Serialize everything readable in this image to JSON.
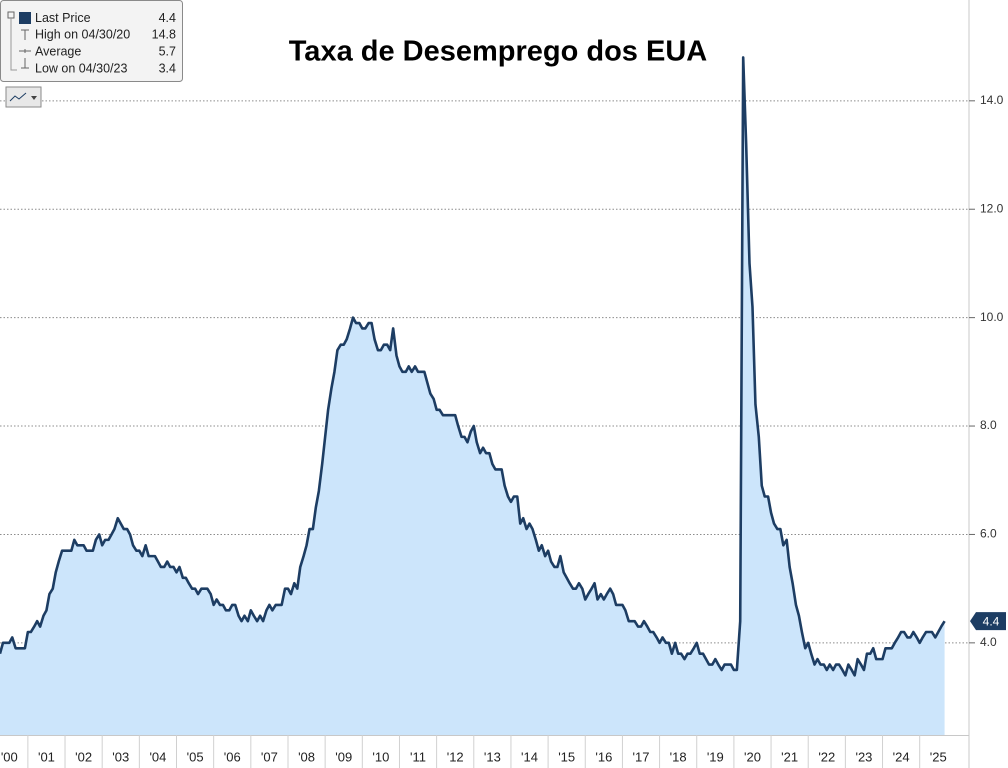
{
  "chart_data": {
    "type": "line",
    "title": "Taxa de Desemprego dos EUA",
    "xlim": [
      2000.25,
      2026.3
    ],
    "ylim": [
      2.3,
      15.86
    ],
    "grid": true,
    "yticks": [
      {
        "value": 4,
        "label": "4.0"
      },
      {
        "value": 6,
        "label": "6.0"
      },
      {
        "value": 8,
        "label": "8.0"
      },
      {
        "value": 10,
        "label": "10.0"
      },
      {
        "value": 12,
        "label": "12.0"
      },
      {
        "value": 14,
        "label": "14.0"
      }
    ],
    "xticks": [
      {
        "value": 2000,
        "label": "'00"
      },
      {
        "value": 2001,
        "label": "'01"
      },
      {
        "value": 2002,
        "label": "'02"
      },
      {
        "value": 2003,
        "label": "'03"
      },
      {
        "value": 2004,
        "label": "'04"
      },
      {
        "value": 2005,
        "label": "'05"
      },
      {
        "value": 2006,
        "label": "'06"
      },
      {
        "value": 2007,
        "label": "'07"
      },
      {
        "value": 2008,
        "label": "'08"
      },
      {
        "value": 2009,
        "label": "'09"
      },
      {
        "value": 2010,
        "label": "'10"
      },
      {
        "value": 2011,
        "label": "'11"
      },
      {
        "value": 2012,
        "label": "'12"
      },
      {
        "value": 2013,
        "label": "'13"
      },
      {
        "value": 2014,
        "label": "'14"
      },
      {
        "value": 2015,
        "label": "'15"
      },
      {
        "value": 2016,
        "label": "'16"
      },
      {
        "value": 2017,
        "label": "'17"
      },
      {
        "value": 2018,
        "label": "'18"
      },
      {
        "value": 2019,
        "label": "'19"
      },
      {
        "value": 2020,
        "label": "'20"
      },
      {
        "value": 2021,
        "label": "'21"
      },
      {
        "value": 2022,
        "label": "'22"
      },
      {
        "value": 2023,
        "label": "'23"
      },
      {
        "value": 2024,
        "label": "'24"
      },
      {
        "value": 2025,
        "label": "'25"
      }
    ],
    "legend": [
      {
        "label": "High on 04/30/20",
        "value": 14.8
      },
      {
        "label": "Average",
        "value": 5.7
      },
      {
        "label": "Low on 04/30/23",
        "value": 3.4
      }
    ],
    "x": [
      2000.25,
      2000.33,
      2000.42,
      2000.5,
      2000.58,
      2000.67,
      2000.75,
      2000.83,
      2000.92,
      2001,
      2001.08,
      2001.17,
      2001.25,
      2001.33,
      2001.42,
      2001.5,
      2001.58,
      2001.67,
      2001.75,
      2001.83,
      2001.92,
      2002,
      2002.08,
      2002.17,
      2002.25,
      2002.33,
      2002.42,
      2002.5,
      2002.58,
      2002.67,
      2002.75,
      2002.83,
      2002.92,
      2003,
      2003.08,
      2003.17,
      2003.25,
      2003.33,
      2003.42,
      2003.5,
      2003.58,
      2003.67,
      2003.75,
      2003.83,
      2003.92,
      2004,
      2004.08,
      2004.17,
      2004.25,
      2004.33,
      2004.42,
      2004.5,
      2004.58,
      2004.67,
      2004.75,
      2004.83,
      2004.92,
      2005,
      2005.08,
      2005.17,
      2005.25,
      2005.33,
      2005.42,
      2005.5,
      2005.58,
      2005.67,
      2005.75,
      2005.83,
      2005.92,
      2006,
      2006.08,
      2006.17,
      2006.25,
      2006.33,
      2006.42,
      2006.5,
      2006.58,
      2006.67,
      2006.75,
      2006.83,
      2006.92,
      2007,
      2007.08,
      2007.17,
      2007.25,
      2007.33,
      2007.42,
      2007.5,
      2007.58,
      2007.67,
      2007.75,
      2007.83,
      2007.92,
      2008,
      2008.08,
      2008.17,
      2008.25,
      2008.33,
      2008.42,
      2008.5,
      2008.58,
      2008.67,
      2008.75,
      2008.83,
      2008.92,
      2009,
      2009.08,
      2009.17,
      2009.25,
      2009.33,
      2009.42,
      2009.5,
      2009.58,
      2009.67,
      2009.75,
      2009.83,
      2009.92,
      2010,
      2010.08,
      2010.17,
      2010.25,
      2010.33,
      2010.42,
      2010.5,
      2010.58,
      2010.67,
      2010.75,
      2010.83,
      2010.92,
      2011,
      2011.08,
      2011.17,
      2011.25,
      2011.33,
      2011.42,
      2011.5,
      2011.58,
      2011.67,
      2011.75,
      2011.83,
      2011.92,
      2012,
      2012.08,
      2012.17,
      2012.25,
      2012.33,
      2012.42,
      2012.5,
      2012.58,
      2012.67,
      2012.75,
      2012.83,
      2012.92,
      2013,
      2013.08,
      2013.17,
      2013.25,
      2013.33,
      2013.42,
      2013.5,
      2013.58,
      2013.67,
      2013.75,
      2013.83,
      2013.92,
      2014,
      2014.08,
      2014.17,
      2014.25,
      2014.33,
      2014.42,
      2014.5,
      2014.58,
      2014.67,
      2014.75,
      2014.83,
      2014.92,
      2015,
      2015.08,
      2015.17,
      2015.25,
      2015.33,
      2015.42,
      2015.5,
      2015.58,
      2015.67,
      2015.75,
      2015.83,
      2015.92,
      2016,
      2016.08,
      2016.17,
      2016.25,
      2016.33,
      2016.42,
      2016.5,
      2016.58,
      2016.67,
      2016.75,
      2016.83,
      2016.92,
      2017,
      2017.08,
      2017.17,
      2017.25,
      2017.33,
      2017.42,
      2017.5,
      2017.58,
      2017.67,
      2017.75,
      2017.83,
      2017.92,
      2018,
      2018.08,
      2018.17,
      2018.25,
      2018.33,
      2018.42,
      2018.5,
      2018.58,
      2018.67,
      2018.75,
      2018.83,
      2018.92,
      2019,
      2019.08,
      2019.17,
      2019.25,
      2019.33,
      2019.42,
      2019.5,
      2019.58,
      2019.67,
      2019.75,
      2019.83,
      2019.92,
      2020,
      2020.08,
      2020.17,
      2020.25,
      2020.33,
      2020.42,
      2020.5,
      2020.58,
      2020.67,
      2020.75,
      2020.83,
      2020.92,
      2021,
      2021.08,
      2021.17,
      2021.25,
      2021.33,
      2021.42,
      2021.5,
      2021.58,
      2021.67,
      2021.75,
      2021.83,
      2021.92,
      2022,
      2022.08,
      2022.17,
      2022.25,
      2022.33,
      2022.42,
      2022.5,
      2022.58,
      2022.67,
      2022.75,
      2022.83,
      2022.92,
      2023,
      2023.08,
      2023.17,
      2023.25,
      2023.33,
      2023.42,
      2023.5,
      2023.58,
      2023.67,
      2023.75,
      2023.83,
      2023.92,
      2024,
      2024.08,
      2024.17,
      2024.25,
      2024.33,
      2024.42,
      2024.5,
      2024.58,
      2024.67,
      2024.75,
      2024.83,
      2024.92,
      2025,
      2025.08,
      2025.17,
      2025.25,
      2025.33,
      2025.42,
      2025.5,
      2025.58,
      2025.67
    ],
    "series": [
      {
        "name": "Last Price",
        "color": "#1d3d63",
        "fill": "#cce5fb",
        "values": [
          3.8,
          4.0,
          4.0,
          4.0,
          4.1,
          3.9,
          3.9,
          3.9,
          3.9,
          4.2,
          4.2,
          4.3,
          4.4,
          4.3,
          4.5,
          4.6,
          4.9,
          5.0,
          5.3,
          5.5,
          5.7,
          5.7,
          5.7,
          5.7,
          5.9,
          5.8,
          5.8,
          5.8,
          5.7,
          5.7,
          5.7,
          5.9,
          6.0,
          5.8,
          5.9,
          5.9,
          6.0,
          6.1,
          6.3,
          6.2,
          6.1,
          6.1,
          6.0,
          5.8,
          5.7,
          5.7,
          5.6,
          5.8,
          5.6,
          5.6,
          5.6,
          5.5,
          5.4,
          5.4,
          5.5,
          5.4,
          5.4,
          5.3,
          5.4,
          5.2,
          5.2,
          5.1,
          5.0,
          5.0,
          4.9,
          5.0,
          5.0,
          5.0,
          4.9,
          4.7,
          4.8,
          4.7,
          4.7,
          4.6,
          4.6,
          4.7,
          4.7,
          4.5,
          4.4,
          4.5,
          4.4,
          4.6,
          4.5,
          4.4,
          4.5,
          4.4,
          4.6,
          4.7,
          4.6,
          4.7,
          4.7,
          4.7,
          5.0,
          5.0,
          4.9,
          5.1,
          5.0,
          5.4,
          5.6,
          5.8,
          6.1,
          6.1,
          6.5,
          6.8,
          7.3,
          7.8,
          8.3,
          8.7,
          9.0,
          9.4,
          9.5,
          9.5,
          9.6,
          9.8,
          10.0,
          9.9,
          9.9,
          9.8,
          9.8,
          9.9,
          9.9,
          9.6,
          9.4,
          9.4,
          9.5,
          9.5,
          9.4,
          9.8,
          9.3,
          9.1,
          9.0,
          9.0,
          9.1,
          9.0,
          9.1,
          9.0,
          9.0,
          9.0,
          8.8,
          8.6,
          8.5,
          8.3,
          8.3,
          8.2,
          8.2,
          8.2,
          8.2,
          8.2,
          8.0,
          7.8,
          7.8,
          7.7,
          7.9,
          8.0,
          7.7,
          7.5,
          7.6,
          7.5,
          7.5,
          7.3,
          7.2,
          7.2,
          7.2,
          6.9,
          6.7,
          6.6,
          6.7,
          6.7,
          6.2,
          6.3,
          6.1,
          6.2,
          6.1,
          5.9,
          5.7,
          5.8,
          5.6,
          5.7,
          5.5,
          5.4,
          5.4,
          5.6,
          5.3,
          5.2,
          5.1,
          5.0,
          5.0,
          5.1,
          5.0,
          4.8,
          4.9,
          5.0,
          5.1,
          4.8,
          4.9,
          4.8,
          4.9,
          5.0,
          4.9,
          4.7,
          4.7,
          4.7,
          4.6,
          4.4,
          4.4,
          4.4,
          4.3,
          4.3,
          4.4,
          4.3,
          4.2,
          4.2,
          4.1,
          4.0,
          4.1,
          4.0,
          4.0,
          3.8,
          4.0,
          3.8,
          3.8,
          3.7,
          3.8,
          3.8,
          3.9,
          4.0,
          3.8,
          3.8,
          3.7,
          3.6,
          3.6,
          3.7,
          3.6,
          3.5,
          3.6,
          3.6,
          3.6,
          3.5,
          3.5,
          4.4,
          14.8,
          13.2,
          11.0,
          10.2,
          8.4,
          7.8,
          6.9,
          6.7,
          6.7,
          6.4,
          6.2,
          6.1,
          6.1,
          5.8,
          5.9,
          5.4,
          5.1,
          4.7,
          4.5,
          4.2,
          3.9,
          4.0,
          3.8,
          3.6,
          3.7,
          3.6,
          3.6,
          3.5,
          3.6,
          3.5,
          3.6,
          3.6,
          3.5,
          3.4,
          3.6,
          3.5,
          3.4,
          3.7,
          3.6,
          3.5,
          3.8,
          3.8,
          3.9,
          3.7,
          3.7,
          3.7,
          3.9,
          3.9,
          3.9,
          4.0,
          4.1,
          4.2,
          4.2,
          4.1,
          4.1,
          4.2,
          4.1,
          4.0,
          4.1,
          4.2,
          4.2,
          4.2,
          4.1,
          4.2,
          4.3,
          4.4
        ]
      }
    ]
  }
}
